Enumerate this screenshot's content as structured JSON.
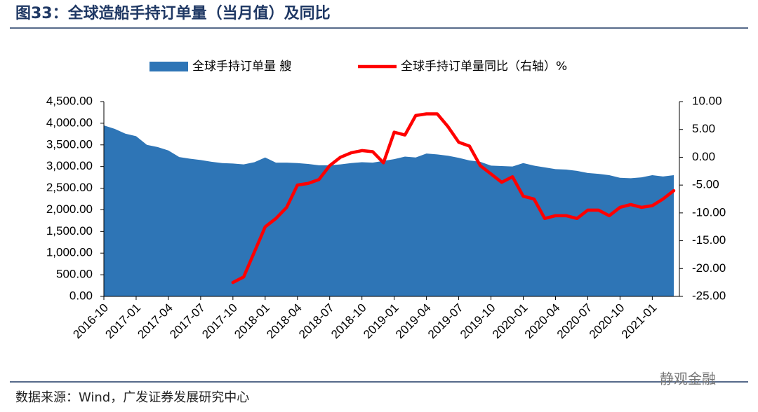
{
  "chart_data": {
    "type": "area",
    "title": "图33：全球造船手持订单量（当月值）及同比",
    "source": "数据来源：Wind，广发证券发展研究中心",
    "watermark": "静观金融",
    "categories": [
      "2016-10",
      null,
      null,
      "2017-01",
      null,
      null,
      "2017-04",
      null,
      null,
      "2017-07",
      null,
      null,
      "2017-10",
      null,
      null,
      "2018-01",
      null,
      null,
      "2018-04",
      null,
      null,
      "2018-07",
      null,
      null,
      "2018-10",
      null,
      null,
      "2019-01",
      null,
      null,
      "2019-04",
      null,
      null,
      "2019-07",
      null,
      null,
      "2019-10",
      null,
      null,
      "2020-01",
      null,
      null,
      "2020-04",
      null,
      null,
      "2020-07",
      null,
      null,
      "2020-10",
      null,
      null,
      "2021-01",
      null,
      null
    ],
    "series": [
      {
        "name": "全球手持订单量 艘",
        "type": "area",
        "color": "#2e75b6",
        "values": [
          3950,
          3870,
          3760,
          3700,
          3500,
          3450,
          3370,
          3220,
          3180,
          3150,
          3110,
          3080,
          3070,
          3050,
          3100,
          3210,
          3090,
          3090,
          3080,
          3060,
          3030,
          3030,
          3050,
          3080,
          3100,
          3090,
          3130,
          3170,
          3230,
          3210,
          3300,
          3280,
          3250,
          3200,
          3140,
          3110,
          3020,
          3010,
          3000,
          3080,
          3020,
          2980,
          2940,
          2930,
          2900,
          2850,
          2830,
          2800,
          2740,
          2730,
          2750,
          2800,
          2770,
          2800
        ]
      },
      {
        "name": "全球手持订单量同比（右轴）%",
        "type": "line",
        "color": "#ff0000",
        "axis": "y2",
        "values": [
          null,
          null,
          null,
          null,
          null,
          null,
          null,
          null,
          null,
          null,
          null,
          null,
          -22.5,
          -21.5,
          -17,
          -12.5,
          -11,
          -9,
          -5,
          -4.7,
          -4,
          -1.5,
          0,
          0.8,
          1.2,
          1,
          -1,
          4.5,
          4,
          7.5,
          7.8,
          7.8,
          5.5,
          2.7,
          2,
          -1.5,
          -3,
          -4.5,
          -3.5,
          -7,
          -7.5,
          -11,
          -10.5,
          -10.5,
          -11,
          -9.5,
          -9.5,
          -10.5,
          -9,
          -8.5,
          -9,
          -8.7,
          -7.5,
          -6
        ]
      }
    ],
    "ylim": [
      0,
      4500
    ],
    "yticks": [
      {
        "value": 0,
        "label": "0.00"
      },
      {
        "value": 500,
        "label": "500.00"
      },
      {
        "value": 1000,
        "label": "1,000.00"
      },
      {
        "value": 1500,
        "label": "1,500.00"
      },
      {
        "value": 2000,
        "label": "2,000.00"
      },
      {
        "value": 2500,
        "label": "2,500.00"
      },
      {
        "value": 3000,
        "label": "3,000.00"
      },
      {
        "value": 3500,
        "label": "3,500.00"
      },
      {
        "value": 4000,
        "label": "4,000.00"
      },
      {
        "value": 4500,
        "label": "4,500.00"
      }
    ],
    "y2lim": [
      -25,
      10
    ],
    "y2ticks": [
      {
        "value": -25,
        "label": "-25.00"
      },
      {
        "value": -20,
        "label": "-20.00"
      },
      {
        "value": -15,
        "label": "-15.00"
      },
      {
        "value": -10,
        "label": "-10.00"
      },
      {
        "value": -5,
        "label": "-5.00"
      },
      {
        "value": 0,
        "label": "0.00"
      },
      {
        "value": 5,
        "label": "5.00"
      },
      {
        "value": 10,
        "label": "10.00"
      }
    ],
    "grid": false
  }
}
